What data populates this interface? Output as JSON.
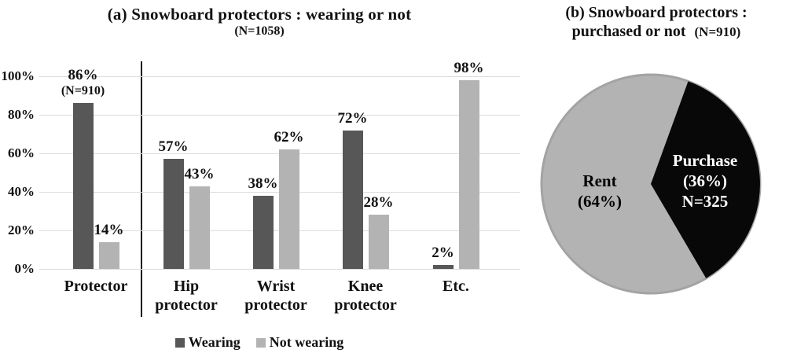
{
  "chart_data": [
    {
      "type": "bar",
      "title": "(a) Snowboard protectors : wearing or not",
      "subtitle": "(N=1058)",
      "categories": [
        "Protector",
        "Hip\nprotector",
        "Wrist\nprotector",
        "Knee\nprotector",
        "Etc."
      ],
      "series": [
        {
          "name": "Wearing",
          "color": "#575757",
          "values": [
            86,
            57,
            38,
            72,
            2
          ]
        },
        {
          "name": "Not wearing",
          "color": "#b3b3b3",
          "values": [
            14,
            43,
            62,
            28,
            98
          ]
        }
      ],
      "value_label_suffix": "%",
      "annotations": {
        "protector_wearing_sublabel": "(N=910)"
      },
      "ylabel": "",
      "xlabel": "",
      "ylim": [
        0,
        100
      ],
      "yticks": [
        "0%",
        "20%",
        "40%",
        "60%",
        "80%",
        "100%"
      ],
      "grid": true,
      "legend_position": "bottom",
      "group_divider_after_first_category": true
    },
    {
      "type": "pie",
      "title": "(b) Snowboard protectors : purchased or not (N=910)",
      "title_lines": {
        "line1": "(b) Snowboard protectors :",
        "line2": "purchased or not",
        "n": "(N=910)"
      },
      "rotation_deg_from_top": 20,
      "rim_color": "#a3a3a3",
      "slices": [
        {
          "name": "Rent",
          "value": 64,
          "color": "#b3b3b3",
          "text_lines": [
            "Rent",
            "(64%)"
          ],
          "text_color": "#000000"
        },
        {
          "name": "Purchase",
          "value": 36,
          "color": "#080808",
          "text_lines": [
            "Purchase",
            "(36%)",
            "N=325"
          ],
          "text_color": "#ffffff"
        }
      ]
    }
  ]
}
